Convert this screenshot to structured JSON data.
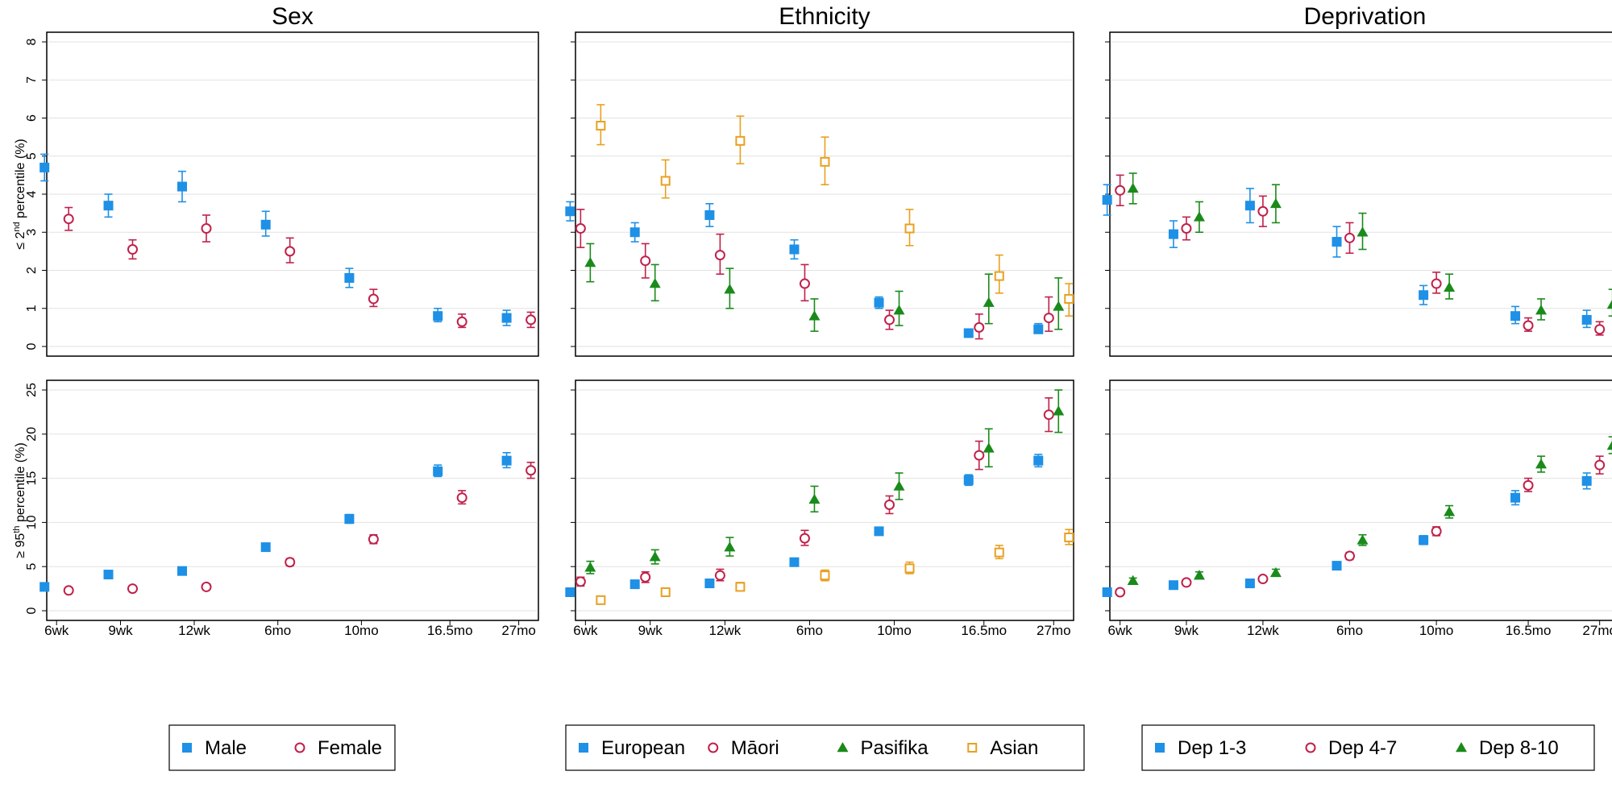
{
  "chart_data": {
    "type": "scatter",
    "x_categories": [
      "6wk",
      "9wk",
      "12wk",
      "6mo",
      "10mo",
      "16.5mo",
      "27mo"
    ],
    "colors": {
      "s1": "#1e90e6",
      "s2": "#c0204a",
      "s3": "#1a8a1a",
      "s4": "#e8a020"
    },
    "rows": [
      {
        "ylabel": "≤ 2nd percentile (%)",
        "ylabel_main": "≤ 2",
        "ylabel_sup": "nd",
        "ylabel_rest": " percentile (%)",
        "ylim": [
          0,
          8
        ],
        "yticks": [
          0,
          1,
          2,
          3,
          4,
          5,
          6,
          7,
          8
        ]
      },
      {
        "ylabel": "≥ 95th percentile (%)",
        "ylabel_main": "≥ 95",
        "ylabel_sup": "th",
        "ylabel_rest": " percentile (%)",
        "ylim": [
          0,
          25
        ],
        "yticks": [
          0,
          5,
          10,
          15,
          20,
          25
        ]
      }
    ],
    "columns": [
      {
        "title": "Sex",
        "series": [
          {
            "name": "Male",
            "marker": "square",
            "color": "#1e90e6",
            "row0": [
              [
                4.7,
                4.35,
                5.05
              ],
              [
                3.7,
                3.4,
                4.0
              ],
              [
                4.2,
                3.8,
                4.6
              ],
              [
                3.2,
                2.9,
                3.55
              ],
              [
                1.8,
                1.55,
                2.05
              ],
              [
                0.8,
                0.65,
                1.0
              ],
              [
                0.75,
                0.55,
                0.95
              ]
            ],
            "row1": [
              [
                2.7,
                2.5,
                2.9
              ],
              [
                4.1,
                3.8,
                4.4
              ],
              [
                4.5,
                4.1,
                4.9
              ],
              [
                7.2,
                6.8,
                7.6
              ],
              [
                10.4,
                9.9,
                10.9
              ],
              [
                15.8,
                15.2,
                16.5
              ],
              [
                17.0,
                16.2,
                17.9
              ]
            ]
          },
          {
            "name": "Female",
            "marker": "circle",
            "color": "#c0204a",
            "row0": [
              [
                3.35,
                3.05,
                3.65
              ],
              [
                2.55,
                2.3,
                2.8
              ],
              [
                3.1,
                2.75,
                3.45
              ],
              [
                2.5,
                2.2,
                2.85
              ],
              [
                1.25,
                1.05,
                1.5
              ],
              [
                0.65,
                0.5,
                0.85
              ],
              [
                0.7,
                0.5,
                0.9
              ]
            ],
            "row1": [
              [
                2.3,
                2.1,
                2.5
              ],
              [
                2.5,
                2.3,
                2.7
              ],
              [
                2.7,
                2.4,
                3.0
              ],
              [
                5.5,
                5.1,
                5.9
              ],
              [
                8.1,
                7.6,
                8.6
              ],
              [
                12.8,
                12.1,
                13.6
              ],
              [
                15.9,
                15.0,
                16.8
              ]
            ]
          }
        ]
      },
      {
        "title": "Ethnicity",
        "series": [
          {
            "name": "European",
            "marker": "square",
            "color": "#1e90e6",
            "row0": [
              [
                3.55,
                3.3,
                3.8
              ],
              [
                3.0,
                2.75,
                3.25
              ],
              [
                3.45,
                3.15,
                3.75
              ],
              [
                2.55,
                2.3,
                2.8
              ],
              [
                1.15,
                1.0,
                1.3
              ],
              [
                0.35,
                0.25,
                0.45
              ],
              [
                0.45,
                0.35,
                0.6
              ]
            ],
            "row1": [
              [
                2.1,
                1.95,
                2.3
              ],
              [
                3.0,
                2.8,
                3.2
              ],
              [
                3.1,
                2.9,
                3.3
              ],
              [
                5.5,
                5.2,
                5.8
              ],
              [
                9.0,
                8.6,
                9.4
              ],
              [
                14.8,
                14.2,
                15.4
              ],
              [
                17.0,
                16.3,
                17.7
              ]
            ]
          },
          {
            "name": "Māori",
            "marker": "circle",
            "color": "#c0204a",
            "row0": [
              [
                3.1,
                2.6,
                3.6
              ],
              [
                2.25,
                1.8,
                2.7
              ],
              [
                2.4,
                1.9,
                2.95
              ],
              [
                1.65,
                1.2,
                2.15
              ],
              [
                0.7,
                0.45,
                0.95
              ],
              [
                0.5,
                0.2,
                0.85
              ],
              [
                0.75,
                0.4,
                1.3
              ]
            ],
            "row1": [
              [
                3.3,
                2.8,
                3.8
              ],
              [
                3.8,
                3.2,
                4.4
              ],
              [
                4.0,
                3.4,
                4.7
              ],
              [
                8.2,
                7.4,
                9.1
              ],
              [
                12.0,
                11.0,
                13.0
              ],
              [
                17.6,
                16.0,
                19.2
              ],
              [
                22.2,
                20.3,
                24.1
              ]
            ]
          },
          {
            "name": "Pasifika",
            "marker": "triangle",
            "color": "#1a8a1a",
            "row0": [
              [
                2.2,
                1.7,
                2.7
              ],
              [
                1.65,
                1.2,
                2.15
              ],
              [
                1.5,
                1.0,
                2.05
              ],
              [
                0.8,
                0.4,
                1.25
              ],
              [
                0.95,
                0.55,
                1.45
              ],
              [
                1.15,
                0.6,
                1.9
              ],
              [
                1.05,
                0.45,
                1.8
              ]
            ],
            "row1": [
              [
                4.9,
                4.2,
                5.6
              ],
              [
                6.1,
                5.3,
                6.9
              ],
              [
                7.2,
                6.2,
                8.3
              ],
              [
                12.6,
                11.2,
                14.1
              ],
              [
                14.1,
                12.6,
                15.6
              ],
              [
                18.4,
                16.3,
                20.6
              ],
              [
                22.6,
                20.2,
                25.0
              ]
            ]
          },
          {
            "name": "Asian",
            "marker": "open-square",
            "color": "#e8a020",
            "row0": [
              [
                5.8,
                5.3,
                6.35
              ],
              [
                4.35,
                3.9,
                4.9
              ],
              [
                5.4,
                4.8,
                6.05
              ],
              [
                4.85,
                4.25,
                5.5
              ],
              [
                3.1,
                2.65,
                3.6
              ],
              [
                1.85,
                1.4,
                2.4
              ],
              [
                1.25,
                0.8,
                1.65
              ]
            ],
            "row1": [
              [
                1.2,
                1.0,
                1.4
              ],
              [
                2.1,
                1.8,
                2.4
              ],
              [
                2.7,
                2.3,
                3.2
              ],
              [
                4.0,
                3.4,
                4.6
              ],
              [
                4.8,
                4.2,
                5.5
              ],
              [
                6.6,
                5.9,
                7.4
              ],
              [
                8.3,
                7.5,
                9.2
              ]
            ]
          }
        ]
      },
      {
        "title": "Deprivation",
        "series": [
          {
            "name": "Dep 1-3",
            "marker": "square",
            "color": "#1e90e6",
            "row0": [
              [
                3.85,
                3.45,
                4.25
              ],
              [
                2.95,
                2.6,
                3.3
              ],
              [
                3.7,
                3.25,
                4.15
              ],
              [
                2.75,
                2.35,
                3.15
              ],
              [
                1.35,
                1.1,
                1.6
              ],
              [
                0.8,
                0.6,
                1.05
              ],
              [
                0.7,
                0.5,
                0.95
              ]
            ],
            "row1": [
              [
                2.1,
                1.9,
                2.3
              ],
              [
                2.9,
                2.6,
                3.2
              ],
              [
                3.1,
                2.8,
                3.4
              ],
              [
                5.1,
                4.7,
                5.5
              ],
              [
                8.0,
                7.5,
                8.5
              ],
              [
                12.8,
                12.0,
                13.6
              ],
              [
                14.7,
                13.8,
                15.6
              ]
            ]
          },
          {
            "name": "Dep 4-7",
            "marker": "circle",
            "color": "#c0204a",
            "row0": [
              [
                4.1,
                3.7,
                4.5
              ],
              [
                3.1,
                2.8,
                3.4
              ],
              [
                3.55,
                3.15,
                3.95
              ],
              [
                2.85,
                2.45,
                3.25
              ],
              [
                1.65,
                1.4,
                1.95
              ],
              [
                0.55,
                0.4,
                0.75
              ],
              [
                0.45,
                0.3,
                0.65
              ]
            ],
            "row1": [
              [
                2.1,
                1.9,
                2.3
              ],
              [
                3.2,
                2.9,
                3.5
              ],
              [
                3.6,
                3.3,
                3.9
              ],
              [
                6.2,
                5.8,
                6.6
              ],
              [
                9.0,
                8.5,
                9.5
              ],
              [
                14.2,
                13.5,
                15.0
              ],
              [
                16.5,
                15.5,
                17.5
              ]
            ]
          },
          {
            "name": "Dep 8-10",
            "marker": "triangle",
            "color": "#1a8a1a",
            "row0": [
              [
                4.15,
                3.75,
                4.55
              ],
              [
                3.4,
                3.0,
                3.8
              ],
              [
                3.75,
                3.25,
                4.25
              ],
              [
                3.0,
                2.55,
                3.5
              ],
              [
                1.55,
                1.25,
                1.9
              ],
              [
                0.95,
                0.7,
                1.25
              ],
              [
                1.1,
                0.8,
                1.5
              ]
            ],
            "row1": [
              [
                3.4,
                3.1,
                3.7
              ],
              [
                4.0,
                3.6,
                4.4
              ],
              [
                4.3,
                3.9,
                4.7
              ],
              [
                8.0,
                7.4,
                8.6
              ],
              [
                11.2,
                10.5,
                11.9
              ],
              [
                16.6,
                15.7,
                17.5
              ],
              [
                18.7,
                17.8,
                19.7
              ]
            ]
          }
        ]
      }
    ]
  }
}
